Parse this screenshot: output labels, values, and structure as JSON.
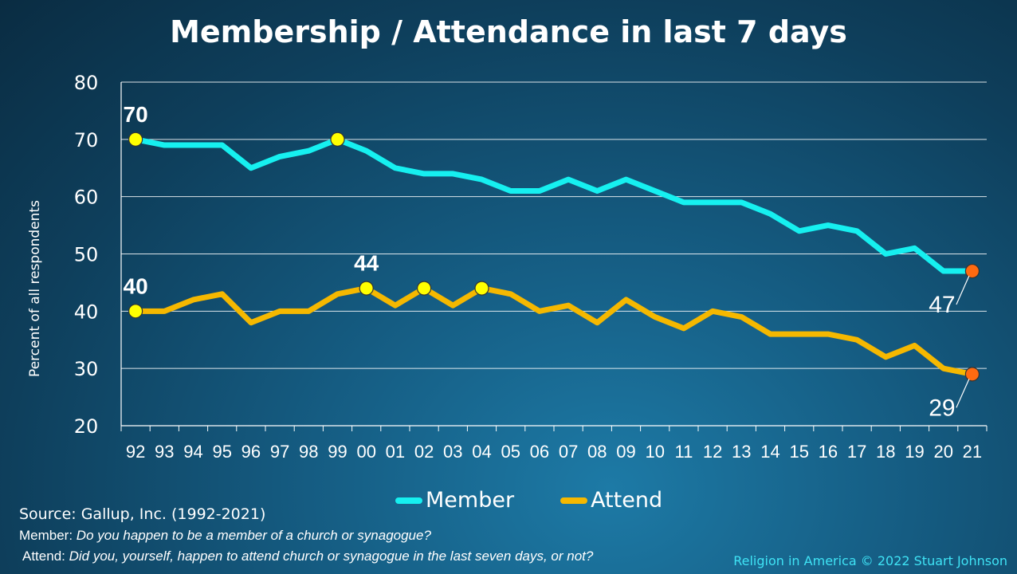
{
  "title": "Membership / Attendance in last 7 days",
  "ylabel": "Percent of all respondents",
  "legend": [
    {
      "label": "Member",
      "color": "#16f0f0"
    },
    {
      "label": "Attend",
      "color": "#f5b800"
    }
  ],
  "source": "Source: Gallup, Inc. (1992-2021)",
  "notes": [
    {
      "prefix": "Member:",
      "text": " Do you happen to be a member of a church or synagogue?"
    },
    {
      "prefix": "Attend:",
      "text": " Did you, yourself, happen to attend church or synagogue in the last seven days, or not?"
    }
  ],
  "credit": "Religion in America © 2022 Stuart Johnson",
  "chart_data": {
    "type": "line",
    "title": "Membership / Attendance in last 7 days",
    "ylabel": "Percent of all respondents",
    "xlabel": "",
    "ylim": [
      20,
      80
    ],
    "yticks": [
      20,
      30,
      40,
      50,
      60,
      70,
      80
    ],
    "grid": true,
    "legend_position": "bottom",
    "x": [
      "92",
      "93",
      "94",
      "95",
      "96",
      "97",
      "98",
      "99",
      "00",
      "01",
      "02",
      "03",
      "04",
      "05",
      "06",
      "07",
      "08",
      "09",
      "10",
      "11",
      "12",
      "13",
      "14",
      "15",
      "16",
      "17",
      "18",
      "19",
      "20",
      "21"
    ],
    "series": [
      {
        "name": "Member",
        "color": "#16f0f0",
        "values": [
          70,
          69,
          69,
          69,
          65,
          67,
          68,
          70,
          68,
          65,
          64,
          64,
          63,
          61,
          61,
          63,
          61,
          63,
          61,
          59,
          59,
          59,
          57,
          54,
          55,
          54,
          50,
          51,
          47,
          47
        ]
      },
      {
        "name": "Attend",
        "color": "#f5b800",
        "values": [
          40,
          40,
          42,
          43,
          38,
          40,
          40,
          43,
          44,
          41,
          44,
          41,
          44,
          43,
          40,
          41,
          38,
          42,
          39,
          37,
          40,
          39,
          36,
          36,
          36,
          35,
          32,
          34,
          30,
          29
        ]
      }
    ],
    "highlights": [
      {
        "series": 0,
        "index": 0,
        "color": "#ffff00",
        "label": "70"
      },
      {
        "series": 0,
        "index": 7,
        "color": "#ffff00",
        "label": ""
      },
      {
        "series": 0,
        "index": 29,
        "color": "#ff6a10",
        "label": "47"
      },
      {
        "series": 1,
        "index": 0,
        "color": "#ffff00",
        "label": "40"
      },
      {
        "series": 1,
        "index": 8,
        "color": "#ffff00",
        "label": "44"
      },
      {
        "series": 1,
        "index": 10,
        "color": "#ffff00",
        "label": ""
      },
      {
        "series": 1,
        "index": 12,
        "color": "#ffff00",
        "label": ""
      },
      {
        "series": 1,
        "index": 29,
        "color": "#ff6a10",
        "label": "29"
      }
    ]
  }
}
